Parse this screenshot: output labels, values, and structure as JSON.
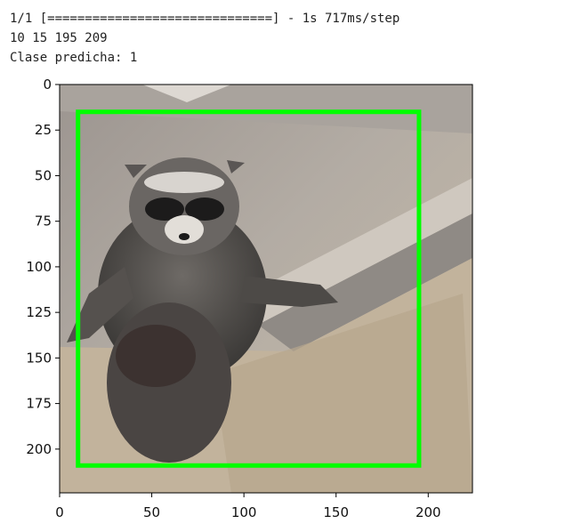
{
  "output": {
    "progress_line": "1/1 [==============================] - 1s 717ms/step",
    "bbox_line": "10 15 195 209",
    "class_line": "Clase predicha: 1"
  },
  "colors": {
    "box": "#00ff00",
    "axis": "#000000"
  },
  "chart_data": {
    "type": "image",
    "image_subject": "raccoon",
    "xlim": [
      0,
      224
    ],
    "ylim": [
      224,
      0
    ],
    "x_ticks": [
      0,
      50,
      100,
      150,
      200
    ],
    "y_ticks": [
      0,
      25,
      50,
      75,
      100,
      125,
      150,
      175,
      200
    ],
    "bounding_box": {
      "x1": 10,
      "y1": 15,
      "x2": 195,
      "y2": 209
    }
  }
}
